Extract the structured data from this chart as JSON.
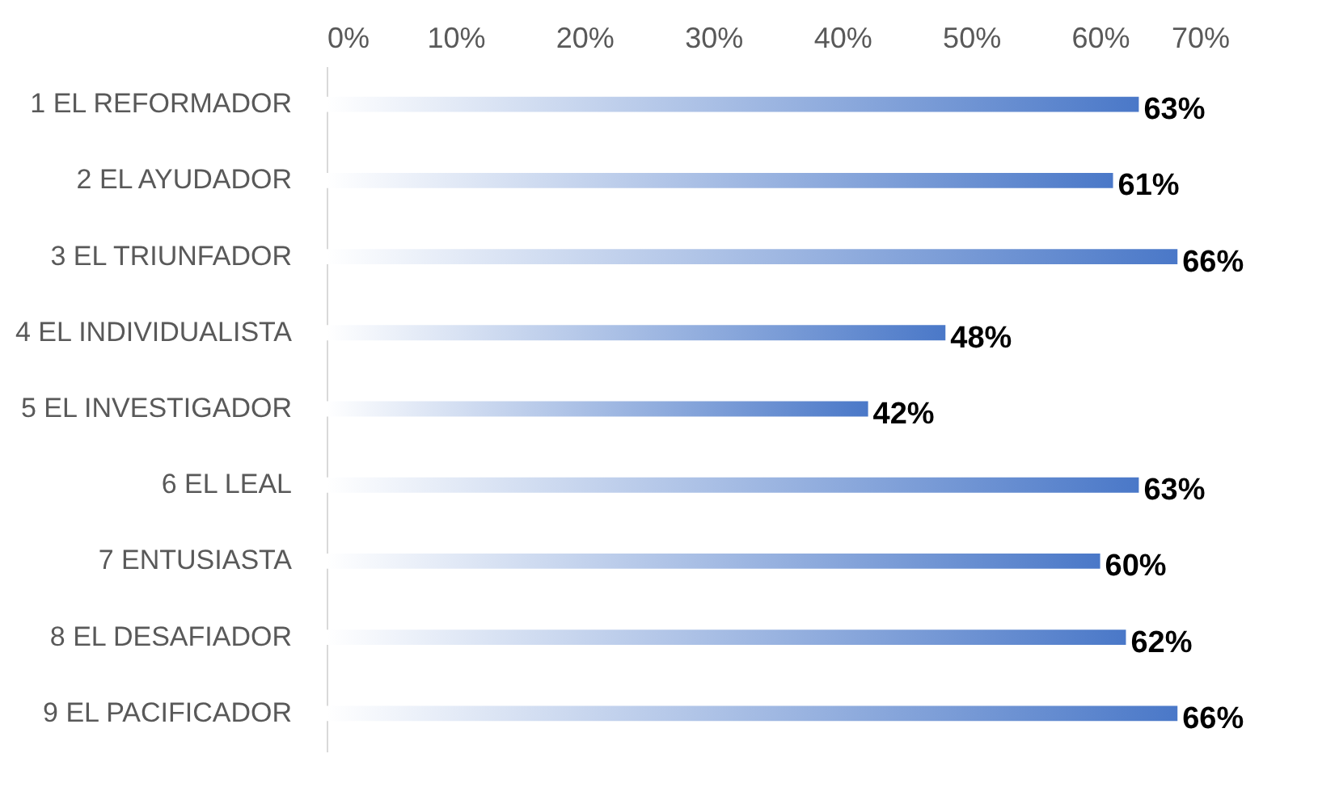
{
  "chart_data": {
    "type": "bar",
    "orientation": "horizontal",
    "categories": [
      "1 EL REFORMADOR",
      "2 EL AYUDADOR",
      "3 EL TRIUNFADOR",
      "4 EL INDIVIDUALISTA",
      "5 EL INVESTIGADOR",
      "6 EL LEAL",
      "7 ENTUSIASTA",
      "8 EL DESAFIADOR",
      "9 EL PACIFICADOR"
    ],
    "values": [
      63,
      61,
      66,
      48,
      42,
      63,
      60,
      62,
      66
    ],
    "value_labels": [
      "63%",
      "61%",
      "66%",
      "48%",
      "42%",
      "63%",
      "60%",
      "62%",
      "66%"
    ],
    "color": "#4a78c8",
    "xlim": [
      0,
      70
    ],
    "xticks": [
      {
        "value": 0,
        "label": "0%"
      },
      {
        "value": 10,
        "label": "10%"
      },
      {
        "value": 20,
        "label": "20%"
      },
      {
        "value": 30,
        "label": "30%"
      },
      {
        "value": 40,
        "label": "40%"
      },
      {
        "value": 50,
        "label": "50%"
      },
      {
        "value": 60,
        "label": "60%"
      },
      {
        "value": 70,
        "label": "70%"
      }
    ],
    "grid": false
  }
}
